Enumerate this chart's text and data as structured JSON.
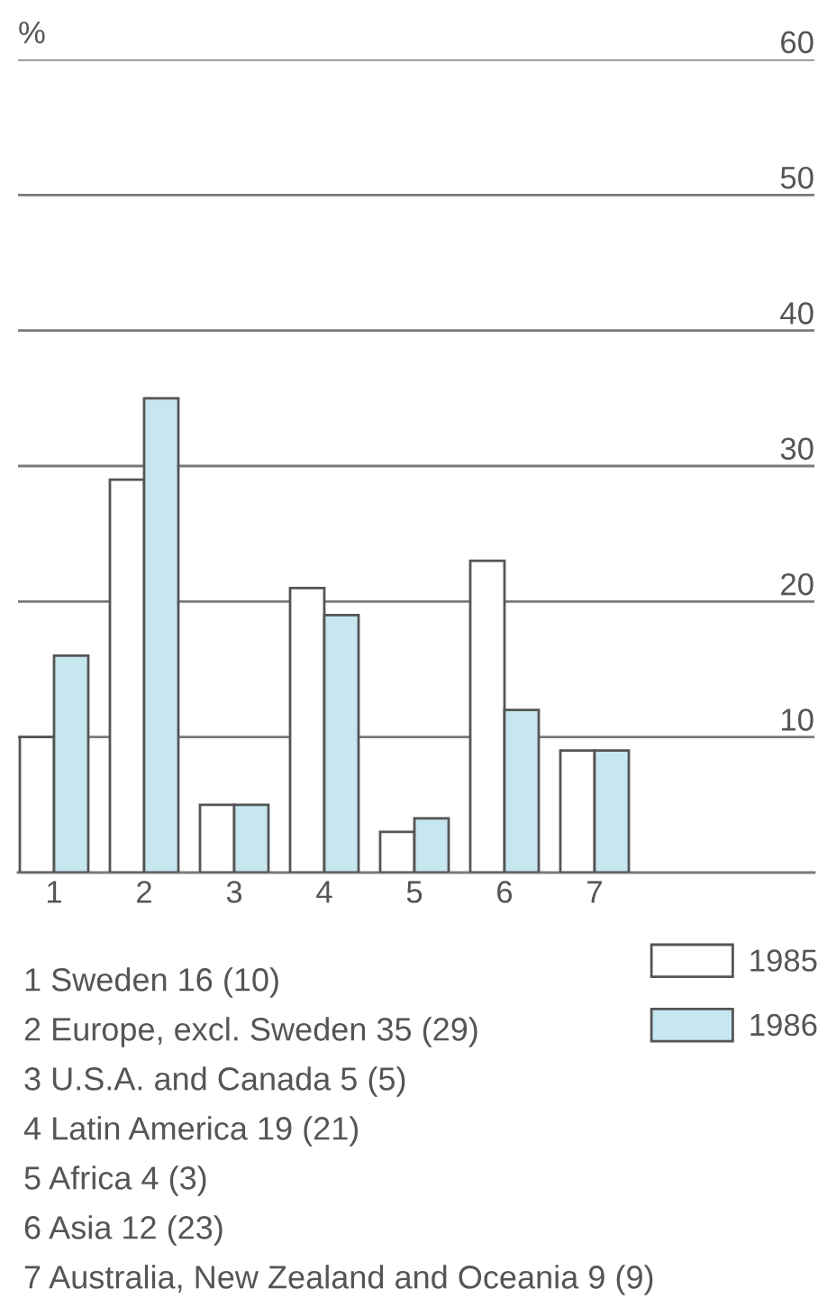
{
  "chart_data": {
    "type": "bar",
    "ylabel": "%",
    "categories": [
      "1",
      "2",
      "3",
      "4",
      "5",
      "6",
      "7"
    ],
    "series": [
      {
        "name": "1985",
        "color": "#ffffff",
        "values": [
          10,
          29,
          5,
          21,
          3,
          23,
          9
        ]
      },
      {
        "name": "1986",
        "color": "#c6e6f0",
        "values": [
          16,
          35,
          5,
          19,
          4,
          12,
          9
        ]
      }
    ],
    "ylim": [
      0,
      60
    ],
    "yticks": [
      10,
      20,
      30,
      40,
      50,
      60
    ],
    "grid": "y",
    "legend": "bottom right",
    "annotations": [
      "1 Sweden 16 (10)",
      "2 Europe, excl. Sweden 35 (29)",
      "3 U.S.A. and Canada 5 (5)",
      "4 Latin America 19 (21)",
      "5 Africa 4 (3)",
      "6 Asia 12 (23)",
      "7 Australia, New Zealand and Oceania 9 (9)"
    ]
  }
}
